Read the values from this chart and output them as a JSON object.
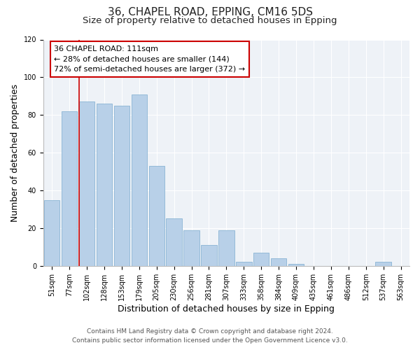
{
  "title": "36, CHAPEL ROAD, EPPING, CM16 5DS",
  "subtitle": "Size of property relative to detached houses in Epping",
  "xlabel": "Distribution of detached houses by size in Epping",
  "ylabel": "Number of detached properties",
  "categories": [
    "51sqm",
    "77sqm",
    "102sqm",
    "128sqm",
    "153sqm",
    "179sqm",
    "205sqm",
    "230sqm",
    "256sqm",
    "281sqm",
    "307sqm",
    "333sqm",
    "358sqm",
    "384sqm",
    "409sqm",
    "435sqm",
    "461sqm",
    "486sqm",
    "512sqm",
    "537sqm",
    "563sqm"
  ],
  "values": [
    35,
    82,
    87,
    86,
    85,
    91,
    53,
    25,
    19,
    11,
    19,
    2,
    7,
    4,
    1,
    0,
    0,
    0,
    0,
    2,
    0
  ],
  "bar_color": "#b8d0e8",
  "bar_edge_color": "#8ab4d4",
  "annotation_text_line1": "36 CHAPEL ROAD: 111sqm",
  "annotation_text_line2": "← 28% of detached houses are smaller (144)",
  "annotation_text_line3": "72% of semi-detached houses are larger (372) →",
  "annotation_box_facecolor": "#ffffff",
  "annotation_box_edgecolor": "#cc0000",
  "vline_color": "#cc0000",
  "vline_x": 1.575,
  "ylim": [
    0,
    120
  ],
  "yticks": [
    0,
    20,
    40,
    60,
    80,
    100,
    120
  ],
  "footnote1": "Contains HM Land Registry data © Crown copyright and database right 2024.",
  "footnote2": "Contains public sector information licensed under the Open Government Licence v3.0.",
  "bg_color": "#ffffff",
  "plot_bg_color": "#eef2f7",
  "title_fontsize": 11,
  "subtitle_fontsize": 9.5,
  "axis_label_fontsize": 9,
  "tick_fontsize": 7,
  "annotation_fontsize": 8,
  "footnote_fontsize": 6.5
}
